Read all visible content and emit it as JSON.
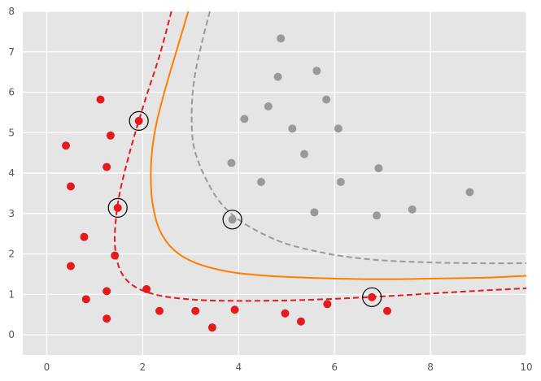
{
  "chart_data": {
    "type": "scatter",
    "title": "",
    "xlabel": "",
    "ylabel": "",
    "xlim": [
      -0.5,
      10
    ],
    "ylim": [
      -0.5,
      8
    ],
    "x_ticks": [
      "0",
      "2",
      "4",
      "6",
      "8",
      "10"
    ],
    "y_ticks": [
      "0",
      "1",
      "2",
      "3",
      "4",
      "5",
      "6",
      "7",
      "8"
    ],
    "x_tick_values": [
      0,
      2,
      4,
      6,
      8,
      10
    ],
    "y_tick_values": [
      0,
      1,
      2,
      3,
      4,
      5,
      6,
      7,
      8
    ],
    "grid": true,
    "colors": {
      "background": "#e5e5e5",
      "grid": "#ffffff",
      "red": "#e41a1c",
      "gray": "#999999",
      "orange": "#ff7f00",
      "sv_ring": "#000000"
    },
    "series": [
      {
        "color": "#e41a1c",
        "points": [
          [
            0.4,
            4.68
          ],
          [
            0.5,
            3.67
          ],
          [
            0.5,
            1.7
          ],
          [
            0.78,
            2.42
          ],
          [
            0.82,
            0.88
          ],
          [
            1.12,
            5.82
          ],
          [
            1.25,
            4.15
          ],
          [
            1.25,
            1.08
          ],
          [
            1.25,
            0.4
          ],
          [
            1.33,
            4.93
          ],
          [
            1.42,
            1.96
          ],
          [
            1.48,
            3.14
          ],
          [
            1.92,
            5.29
          ],
          [
            2.08,
            1.13
          ],
          [
            2.35,
            0.59
          ],
          [
            3.1,
            0.59
          ],
          [
            3.45,
            0.18
          ],
          [
            3.92,
            0.62
          ],
          [
            4.97,
            0.53
          ],
          [
            5.3,
            0.33
          ],
          [
            5.85,
            0.76
          ],
          [
            6.78,
            0.93
          ],
          [
            7.1,
            0.59
          ]
        ]
      },
      {
        "color": "#999999",
        "points": [
          [
            3.85,
            4.25
          ],
          [
            3.87,
            2.85
          ],
          [
            4.12,
            5.34
          ],
          [
            4.47,
            3.78
          ],
          [
            4.62,
            5.65
          ],
          [
            4.82,
            6.38
          ],
          [
            4.88,
            7.33
          ],
          [
            5.12,
            5.1
          ],
          [
            5.37,
            4.47
          ],
          [
            5.58,
            3.03
          ],
          [
            5.63,
            6.53
          ],
          [
            5.83,
            5.82
          ],
          [
            6.08,
            5.1
          ],
          [
            6.13,
            3.78
          ],
          [
            6.88,
            2.95
          ],
          [
            6.92,
            4.12
          ],
          [
            7.62,
            3.1
          ],
          [
            8.82,
            3.53
          ]
        ]
      }
    ],
    "support_vectors": [
      [
        1.92,
        5.29
      ],
      [
        1.48,
        3.14
      ],
      [
        3.87,
        2.85
      ],
      [
        6.78,
        0.93
      ]
    ],
    "curves": [
      {
        "style": "dashed",
        "color": "#e41a1c",
        "points": [
          [
            2.6,
            8.0
          ],
          [
            2.35,
            6.9
          ],
          [
            2.05,
            5.8
          ],
          [
            1.75,
            4.6
          ],
          [
            1.52,
            3.5
          ],
          [
            1.43,
            2.7
          ],
          [
            1.43,
            2.1
          ],
          [
            1.55,
            1.55
          ],
          [
            1.85,
            1.18
          ],
          [
            2.4,
            0.96
          ],
          [
            3.2,
            0.86
          ],
          [
            4.0,
            0.84
          ],
          [
            5.0,
            0.85
          ],
          [
            6.0,
            0.89
          ],
          [
            7.0,
            0.95
          ],
          [
            8.0,
            1.02
          ],
          [
            9.0,
            1.09
          ],
          [
            10.0,
            1.15
          ]
        ]
      },
      {
        "style": "solid",
        "color": "#ff7f00",
        "points": [
          [
            2.95,
            8.0
          ],
          [
            2.75,
            7.2
          ],
          [
            2.5,
            6.2
          ],
          [
            2.3,
            5.3
          ],
          [
            2.2,
            4.6
          ],
          [
            2.17,
            4.0
          ],
          [
            2.2,
            3.3
          ],
          [
            2.35,
            2.6
          ],
          [
            2.65,
            2.1
          ],
          [
            3.1,
            1.78
          ],
          [
            3.8,
            1.56
          ],
          [
            4.6,
            1.46
          ],
          [
            5.5,
            1.41
          ],
          [
            6.5,
            1.38
          ],
          [
            7.5,
            1.38
          ],
          [
            8.5,
            1.4
          ],
          [
            9.3,
            1.42
          ],
          [
            10.0,
            1.46
          ]
        ]
      },
      {
        "style": "dashed",
        "color": "#999999",
        "points": [
          [
            3.4,
            8.0
          ],
          [
            3.25,
            7.3
          ],
          [
            3.1,
            6.5
          ],
          [
            3.03,
            5.8
          ],
          [
            3.03,
            5.0
          ],
          [
            3.1,
            4.5
          ],
          [
            3.3,
            3.9
          ],
          [
            3.6,
            3.3
          ],
          [
            4.0,
            2.85
          ],
          [
            4.5,
            2.5
          ],
          [
            5.0,
            2.25
          ],
          [
            5.6,
            2.07
          ],
          [
            6.2,
            1.94
          ],
          [
            7.0,
            1.84
          ],
          [
            8.0,
            1.79
          ],
          [
            9.0,
            1.77
          ],
          [
            10.0,
            1.77
          ]
        ]
      }
    ]
  }
}
